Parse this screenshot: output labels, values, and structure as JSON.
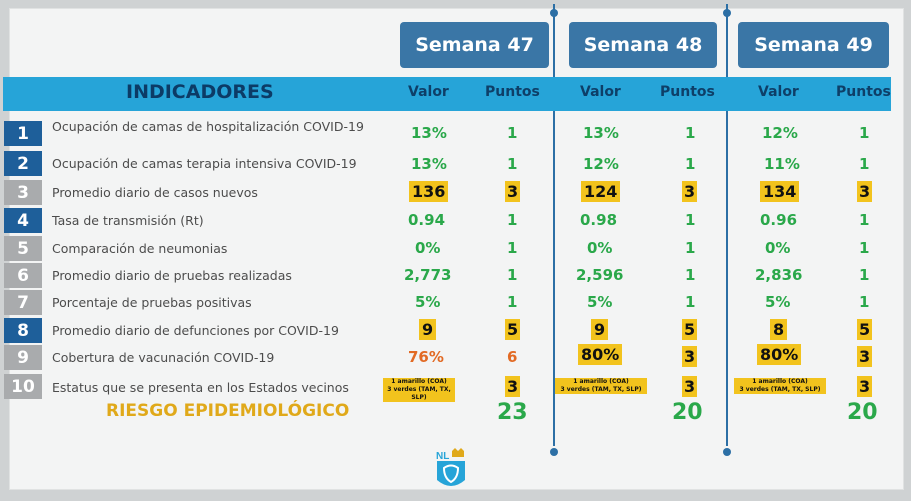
{
  "weeks": [
    "Semana 47",
    "Semana 48",
    "Semana 49"
  ],
  "headers": {
    "indicadores": "INDICADORES",
    "valor": "Valor",
    "puntos": "Puntos"
  },
  "rows": [
    {
      "num": "1",
      "label": "Ocupación de camas de hospitalización COVID-19",
      "v": [
        "13%",
        "13%",
        "12%"
      ],
      "p": [
        "1",
        "1",
        "1"
      ]
    },
    {
      "num": "2",
      "label": "Ocupación de camas terapia intensiva COVID-19",
      "v": [
        "13%",
        "12%",
        "11%"
      ],
      "p": [
        "1",
        "1",
        "1"
      ]
    },
    {
      "num": "3",
      "label": "Promedio diario de casos nuevos",
      "v": [
        "136",
        "124",
        "134"
      ],
      "p": [
        "3",
        "3",
        "3"
      ]
    },
    {
      "num": "4",
      "label": "Tasa de transmisión (Rt)",
      "v": [
        "0.94",
        "0.98",
        "0.96"
      ],
      "p": [
        "1",
        "1",
        "1"
      ]
    },
    {
      "num": "5",
      "label": "Comparación de neumonias",
      "v": [
        "0%",
        "0%",
        "0%"
      ],
      "p": [
        "1",
        "1",
        "1"
      ]
    },
    {
      "num": "6",
      "label": "Promedio diario de pruebas realizadas",
      "v": [
        "2,773",
        "2,596",
        "2,836"
      ],
      "p": [
        "1",
        "1",
        "1"
      ]
    },
    {
      "num": "7",
      "label": "Porcentaje de pruebas positivas",
      "v": [
        "5%",
        "5%",
        "5%"
      ],
      "p": [
        "1",
        "1",
        "1"
      ]
    },
    {
      "num": "8",
      "label": "Promedio diario de defunciones por COVID-19",
      "v": [
        "9",
        "9",
        "8"
      ],
      "p": [
        "5",
        "5",
        "5"
      ]
    },
    {
      "num": "9",
      "label": "Cobertura de vacunación COVID-19",
      "v": [
        "76%",
        "80%",
        "80%"
      ],
      "p": [
        "6",
        "3",
        "3"
      ]
    },
    {
      "num": "10",
      "label": "Estatus que se presenta en los Estados vecinos",
      "p": [
        "3",
        "3",
        "3"
      ]
    }
  ],
  "status_text": {
    "line1": "1 amarillo (COA)",
    "line2": "3 verdes (TAM, TX, SLP)"
  },
  "risk_label": "RIESGO EPIDEMIOLÓGICO",
  "totals": [
    "23",
    "20",
    "20"
  ],
  "logo_text": "NL",
  "colors": {
    "tab": "#3a76a6",
    "band": "#26a4d8",
    "green": "#2aa84a",
    "amber": "#f2c31d",
    "orange": "#e26a24",
    "risk": "#e0a91a"
  }
}
